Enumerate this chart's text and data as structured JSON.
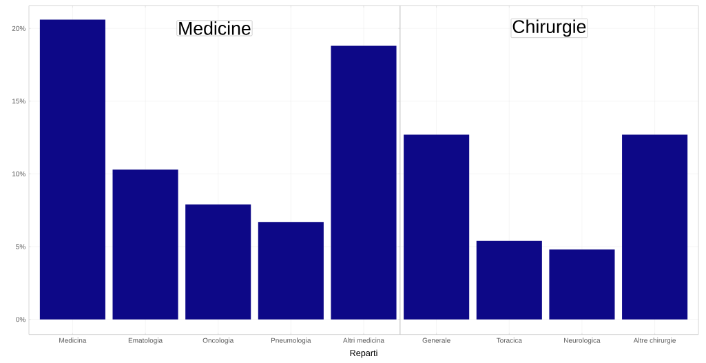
{
  "chart_data": [
    {
      "type": "bar",
      "title": "Medicine",
      "xlabel": "Reparti",
      "categories": [
        "Medicina",
        "Ematologia",
        "Oncologia",
        "Pneumologia",
        "Altri medicina"
      ],
      "values": [
        20.6,
        10.3,
        7.9,
        6.7,
        18.8
      ],
      "color": "#0d0887",
      "ylim": [
        -1.04,
        21.56
      ],
      "yticks": [
        {
          "value": 0,
          "label": "0%"
        },
        {
          "value": 5,
          "label": "5%"
        },
        {
          "value": 10,
          "label": "10%"
        },
        {
          "value": 15,
          "label": "15%"
        },
        {
          "value": 20,
          "label": "20%"
        }
      ],
      "grid": true
    },
    {
      "type": "bar",
      "title": "Chirurgie",
      "categories": [
        "Generale",
        "Toracica",
        "Neurologica",
        "Altre chirurgie"
      ],
      "values": [
        12.7,
        5.4,
        4.8,
        12.7
      ],
      "color": "#0d0887",
      "ylim": [
        -1.04,
        21.56
      ],
      "yticks": [
        0,
        5,
        10,
        15,
        20
      ],
      "grid": true,
      "tick_labels": "x"
    }
  ]
}
